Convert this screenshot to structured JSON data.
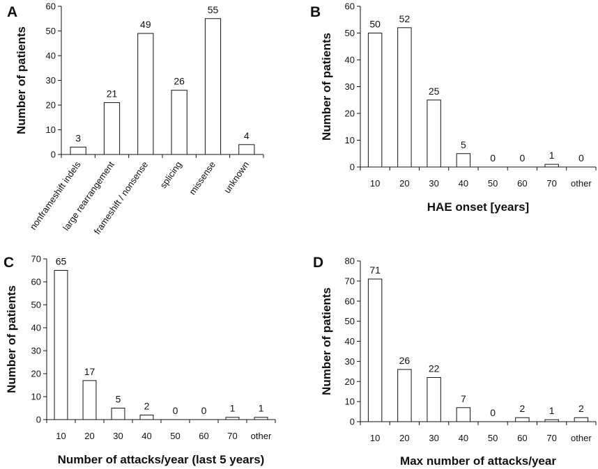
{
  "chart_data": [
    {
      "panel": "A",
      "type": "bar",
      "categories": [
        "nonframeshift indels",
        "large rearrangement",
        "frameshift / nonsense",
        "splicing",
        "missense",
        "unknown"
      ],
      "values": [
        3,
        21,
        49,
        26,
        55,
        4
      ],
      "data_labels": [
        "3",
        "21",
        "49",
        "26",
        "55",
        "4"
      ],
      "xlabel": "",
      "ylabel": "Number of patients",
      "ylim": [
        0,
        60
      ],
      "yticks": [
        "0",
        "10",
        "20",
        "30",
        "40",
        "50",
        "60"
      ]
    },
    {
      "panel": "B",
      "type": "bar",
      "categories": [
        "10",
        "20",
        "30",
        "40",
        "50",
        "60",
        "70",
        "other"
      ],
      "values": [
        50,
        52,
        25,
        5,
        0,
        0,
        1,
        0
      ],
      "data_labels": [
        "50",
        "52",
        "25",
        "5",
        "0",
        "0",
        "1",
        "0"
      ],
      "xlabel": "HAE onset [years]",
      "ylabel": "Number of patients",
      "ylim": [
        0,
        60
      ],
      "yticks": [
        "0",
        "10",
        "20",
        "30",
        "40",
        "50",
        "60"
      ]
    },
    {
      "panel": "C",
      "type": "bar",
      "categories": [
        "10",
        "20",
        "30",
        "40",
        "50",
        "60",
        "70",
        "other"
      ],
      "values": [
        65,
        17,
        5,
        2,
        0,
        0,
        1,
        1
      ],
      "data_labels": [
        "65",
        "17",
        "5",
        "2",
        "0",
        "0",
        "1",
        "1"
      ],
      "xlabel": "Number of attacks/year (last 5 years)",
      "ylabel": "Number of patients",
      "ylim": [
        0,
        70
      ],
      "yticks": [
        "0",
        "10",
        "20",
        "30",
        "40",
        "50",
        "60",
        "70"
      ]
    },
    {
      "panel": "D",
      "type": "bar",
      "categories": [
        "10",
        "20",
        "30",
        "40",
        "50",
        "60",
        "70",
        "other"
      ],
      "values": [
        71,
        26,
        22,
        7,
        0,
        2,
        1,
        2
      ],
      "data_labels": [
        "71",
        "26",
        "22",
        "7",
        "0",
        "2",
        "1",
        "2"
      ],
      "xlabel": "Max number of attacks/year",
      "ylabel": "Number of patients",
      "ylim": [
        0,
        80
      ],
      "yticks": [
        "0",
        "10",
        "20",
        "30",
        "40",
        "50",
        "60",
        "70",
        "80"
      ]
    }
  ]
}
